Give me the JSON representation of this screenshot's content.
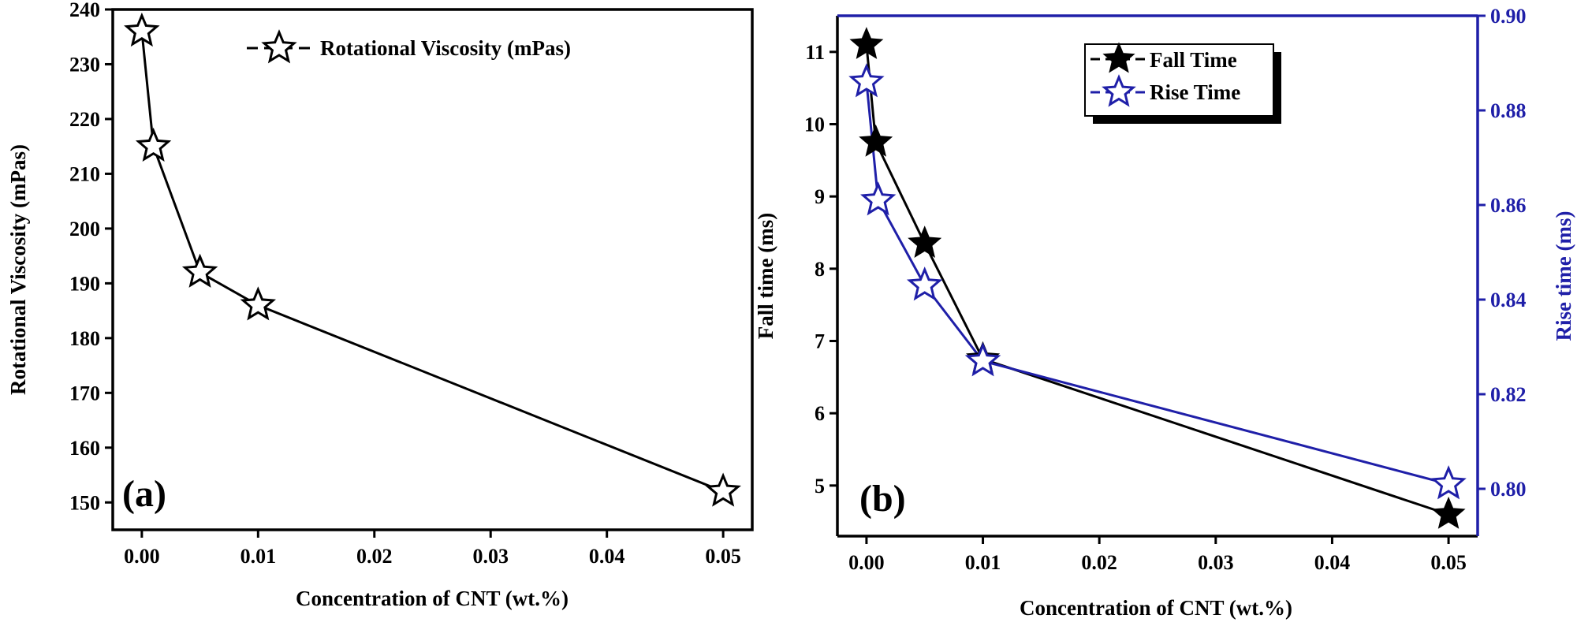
{
  "chart_data": [
    {
      "type": "line",
      "panel_label": "(a)",
      "xlabel": "Concentration of CNT (wt.%)",
      "ylabel": "Rotational Viscosity (mPas)",
      "xlim": [
        -0.0025,
        0.0525
      ],
      "ylim": [
        145,
        240
      ],
      "x_ticks": [
        0.0,
        0.01,
        0.02,
        0.03,
        0.04,
        0.05
      ],
      "x_tick_labels": [
        "0.00",
        "0.01",
        "0.02",
        "0.03",
        "0.04",
        "0.05"
      ],
      "y_ticks": [
        150,
        160,
        170,
        180,
        190,
        200,
        210,
        220,
        230,
        240
      ],
      "y_tick_labels": [
        "150",
        "160",
        "170",
        "180",
        "190",
        "200",
        "210",
        "220",
        "230",
        "240"
      ],
      "legend_position": "top-right",
      "series": [
        {
          "name": "Rotational Viscosity (mPas)",
          "color": "#000000",
          "marker": "open-star",
          "x": [
            0,
            0.001,
            0.005,
            0.01,
            0.05
          ],
          "y": [
            236,
            215,
            192,
            186,
            152
          ]
        }
      ]
    },
    {
      "type": "line",
      "panel_label": "(b)",
      "xlabel": "Concentration of CNT (wt.%)",
      "ylabel": "Fall time (ms)",
      "ylabel_right": "Rise time (ms)",
      "xlim": [
        -0.0025,
        0.0525
      ],
      "ylim": [
        4.3,
        11.5
      ],
      "ylim_right": [
        0.79,
        0.9
      ],
      "x_ticks": [
        0.0,
        0.01,
        0.02,
        0.03,
        0.04,
        0.05
      ],
      "x_tick_labels": [
        "0.00",
        "0.01",
        "0.02",
        "0.03",
        "0.04",
        "0.05"
      ],
      "y_ticks": [
        5,
        6,
        7,
        8,
        9,
        10,
        11
      ],
      "y_tick_labels": [
        "5",
        "6",
        "7",
        "8",
        "9",
        "10",
        "11"
      ],
      "y_ticks_right": [
        0.8,
        0.82,
        0.84,
        0.86,
        0.88,
        0.9
      ],
      "y_tick_labels_right": [
        "0.80",
        "0.82",
        "0.84",
        "0.86",
        "0.88",
        "0.90"
      ],
      "right_axis_color": "#1f1fa8",
      "legend_position": "top-center",
      "series": [
        {
          "name": "Fall Time",
          "axis": "left",
          "color": "#000000",
          "marker": "filled-star",
          "x": [
            0,
            0.0008,
            0.005,
            0.01,
            0.05
          ],
          "y": [
            11.1,
            9.75,
            8.35,
            6.75,
            4.6
          ]
        },
        {
          "name": "Rise Time",
          "axis": "right",
          "color": "#1f1fa8",
          "marker": "open-star",
          "x": [
            0,
            0.001,
            0.005,
            0.01,
            0.05
          ],
          "y": [
            0.886,
            0.861,
            0.843,
            0.827,
            0.801
          ]
        }
      ]
    }
  ]
}
